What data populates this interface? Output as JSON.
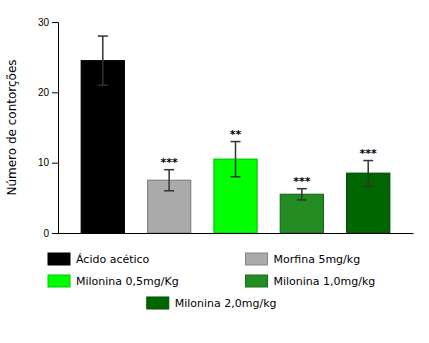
{
  "chart_data": {
    "type": "bar",
    "categories": [
      "Ácido acético",
      "Morfina 5mg/kg",
      "Milonina 0,5mg/Kg",
      "Milonina 1,0mg/kg",
      "Milonina 2,0mg/kg"
    ],
    "values": [
      24.5,
      7.5,
      10.5,
      5.5,
      8.5
    ],
    "errors": [
      3.5,
      1.5,
      2.5,
      0.8,
      1.8
    ],
    "colors": [
      "#000000",
      "#aaaaaa",
      "#00ff00",
      "#228B22",
      "#006600"
    ],
    "annotations": [
      null,
      "***",
      "**",
      "***",
      "***"
    ],
    "ylabel": "Número de contorções",
    "ylim": [
      0,
      30
    ],
    "yticks": [
      0,
      10,
      20,
      30
    ],
    "tick_labels": "y",
    "legend": "bottom"
  }
}
